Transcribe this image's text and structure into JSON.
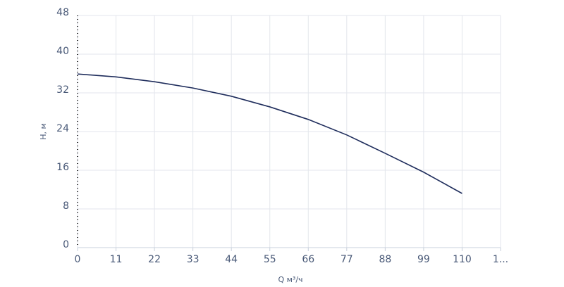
{
  "chart_data": {
    "type": "line",
    "x_label": "Q м³/ч",
    "y_label": "H, м",
    "x": [
      0,
      11,
      22,
      33,
      44,
      55,
      66,
      77,
      88,
      99,
      110
    ],
    "series": [
      {
        "name": "H",
        "color": "#1f2d5c",
        "values": [
          35.9,
          35.3,
          34.3,
          33.0,
          31.3,
          29.1,
          26.5,
          23.3,
          19.5,
          15.6,
          11.2
        ]
      }
    ],
    "xlim": [
      0,
      121
    ],
    "xticks": [
      0,
      11,
      22,
      33,
      44,
      55,
      66,
      77,
      88,
      99,
      110,
      {
        "value": 121,
        "label": "1..."
      }
    ],
    "ylim": [
      0,
      48
    ],
    "yticks": [
      0,
      8,
      16,
      24,
      32,
      40,
      48
    ],
    "grid": true
  }
}
